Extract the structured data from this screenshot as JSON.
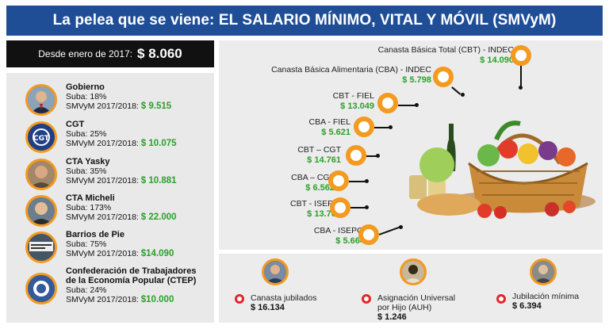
{
  "title": "La pelea que se viene: EL SALARIO MÍNIMO, VITAL Y MÓVIL (SMVyM)",
  "since": {
    "label": "Desde enero de 2017:",
    "amount": "$ 8.060"
  },
  "groups": [
    {
      "name": "Gobierno",
      "suba": "Suba: 18%",
      "smvym_label": "SMVyM 2017/2018:",
      "smvym_value": "$ 9.515",
      "icon": "official-portrait-icon"
    },
    {
      "name": "CGT",
      "suba": "Suba: 25%",
      "smvym_label": "SMVyM 2017/2018:",
      "smvym_value": "$ 10.075",
      "icon": "cgt-logo-icon"
    },
    {
      "name": "CTA Yasky",
      "suba": "Suba: 35%",
      "smvym_label": "SMVyM 2017/2018:",
      "smvym_value": "$ 10.881",
      "icon": "person-portrait-icon"
    },
    {
      "name": "CTA Micheli",
      "suba": "Suba: 173%",
      "smvym_label": "SMVyM 2017/2018:",
      "smvym_value": "$ 22.000",
      "icon": "person-portrait-icon"
    },
    {
      "name": "Barrios de Pie",
      "suba": "Suba: 75%",
      "smvym_label": "SMVyM 2017/2018:",
      "smvym_value": "$14.090",
      "icon": "protest-banner-icon"
    },
    {
      "name": "Confederación de Trabajadores",
      "name2": "de la Economía Popular (CTEP)",
      "suba": "Suba:  24%",
      "smvym_label": "SMVyM 2017/2018:",
      "smvym_value": "$10.000",
      "icon": "ctep-logo-icon"
    }
  ],
  "canastas": [
    {
      "label": "Canasta Básica Total (CBT) - INDEC",
      "value": "$ 14.090"
    },
    {
      "label": "Canasta Básica Alimentaria (CBA) - INDEC",
      "value": "$ 5.798"
    },
    {
      "label": "CBT - FIEL",
      "value": "$ 13.049"
    },
    {
      "label": "CBA - FIEL",
      "value": "$ 5.621"
    },
    {
      "label": "CBT – CGT",
      "value": "$ 14.761"
    },
    {
      "label": "CBA – CGT",
      "value": "$ 6.562"
    },
    {
      "label": "CBT - ISEPCi",
      "value": "$ 13.764"
    },
    {
      "label": "CBA - ISEPCi",
      "value": "$ 5.664"
    }
  ],
  "bottom": [
    {
      "label": "Canasta jubilados",
      "value": "$ 16.134"
    },
    {
      "label": "Asignación Universal",
      "label2": "por Hijo (AUH)",
      "value": "$ 1.246"
    },
    {
      "label": "Jubilación mínima",
      "value": "$ 6.394"
    }
  ],
  "colors": {
    "title_bg": "#1f4e96",
    "accent_orange": "#f39a1f",
    "value_green": "#2aa02a",
    "bullet_red": "#e4262b"
  }
}
